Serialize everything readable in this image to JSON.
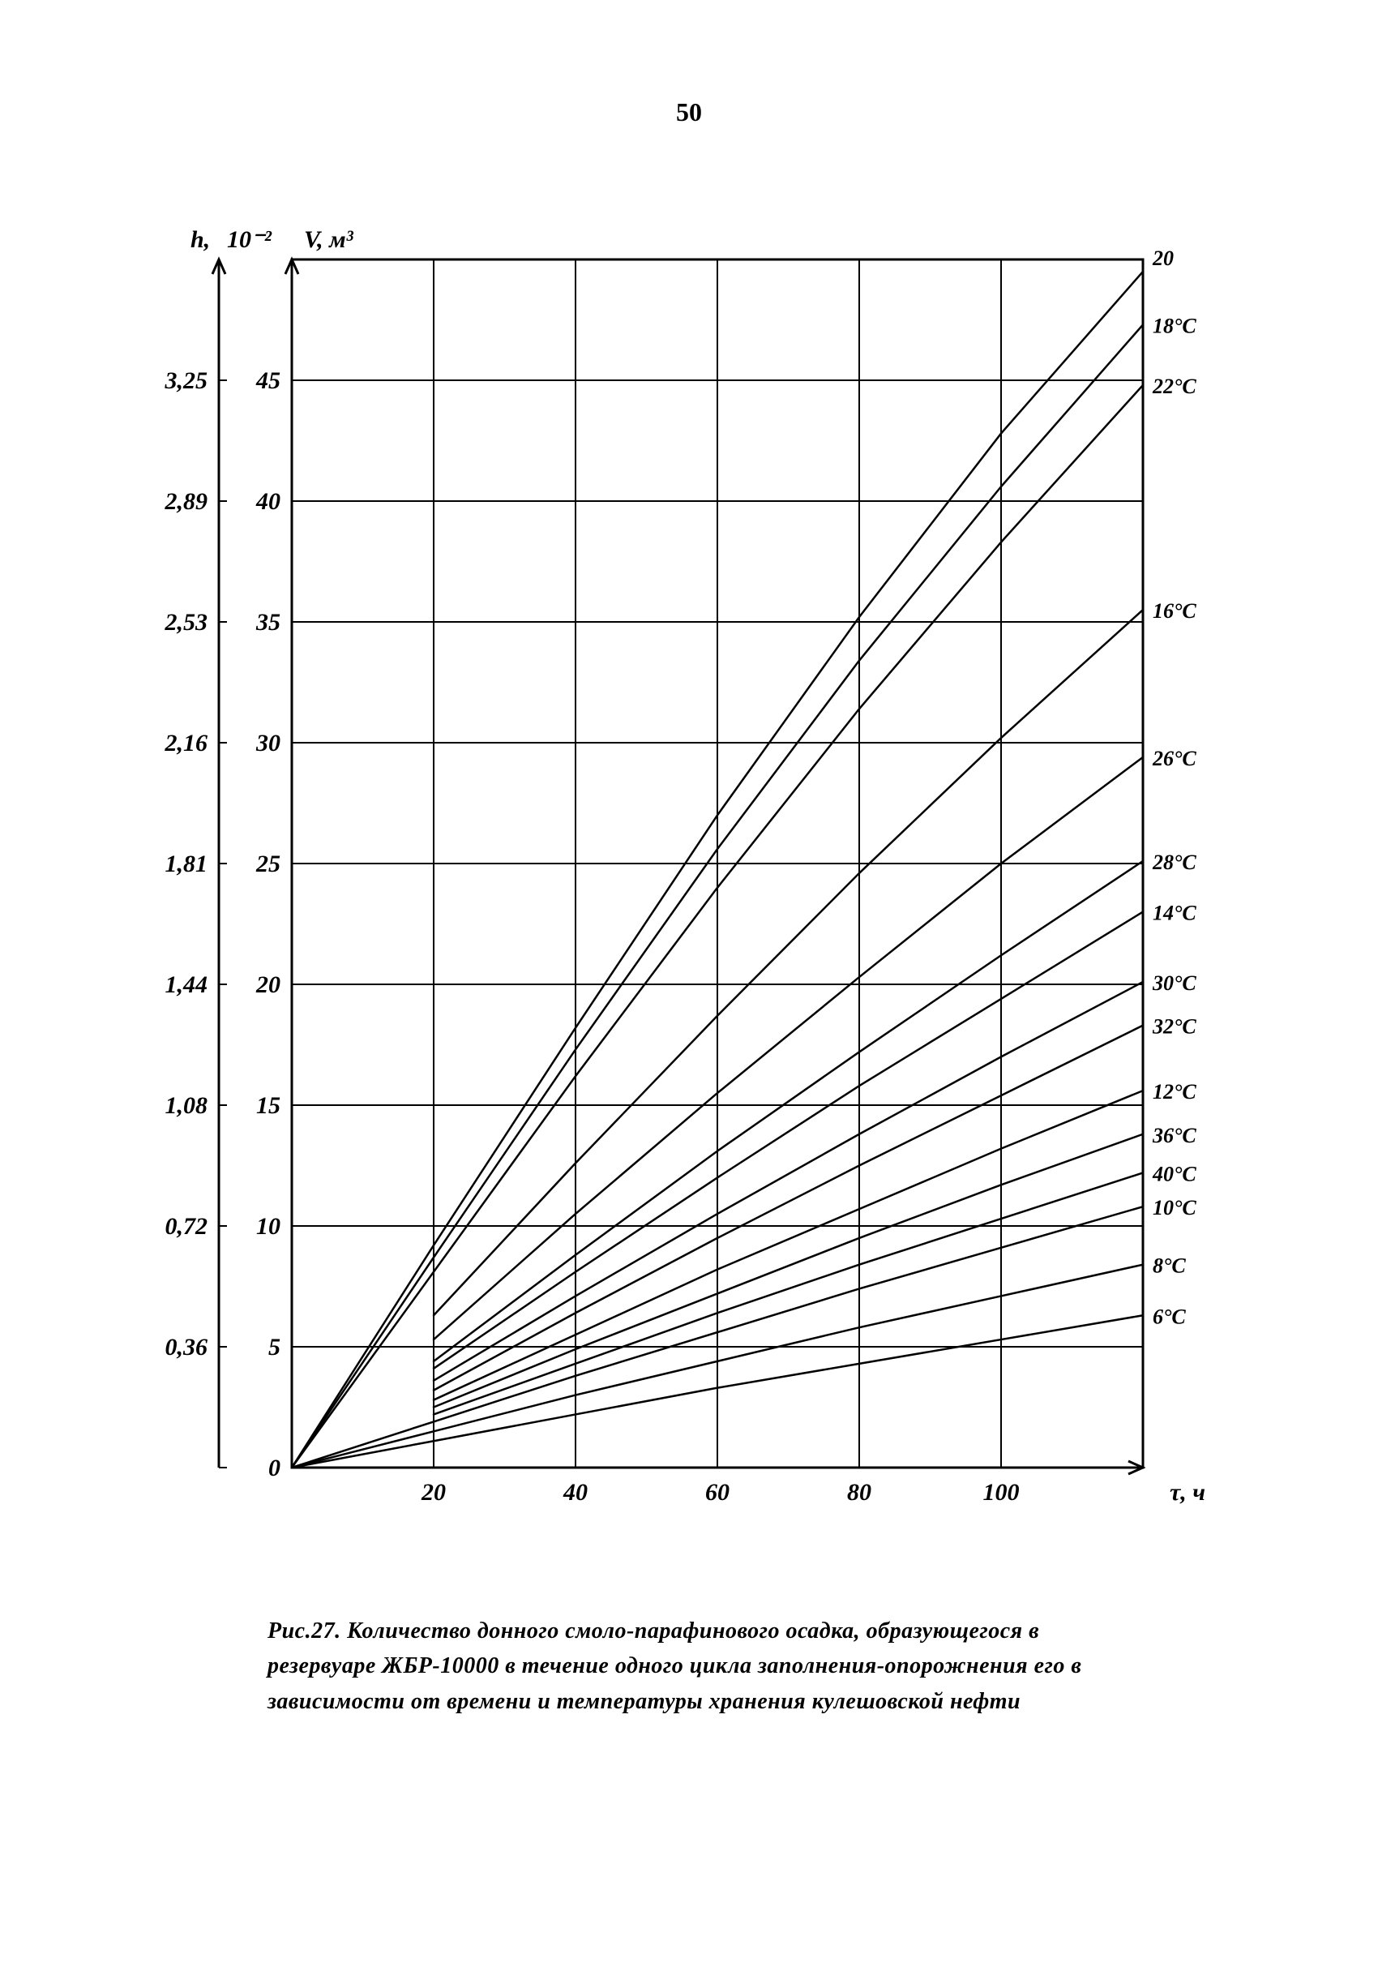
{
  "page_number": "50",
  "caption": "Рис.27. Количество донного смоло-парафинового осадка, образующегося в резервуаре ЖБР-10000 в течение одного цикла заполнения-опорожнения его в зависимости от времени и температуры хранения кулешовской нефти",
  "chart": {
    "type": "line",
    "background_color": "#ffffff",
    "stroke_color": "#000000",
    "axis_line_width": 3,
    "grid_line_width": 2,
    "curve_line_width": 2.5,
    "tick_font_size": 30,
    "tick_font_style": "italic",
    "tick_font_weight": "bold",
    "label_font_style": "italic",
    "label_font_weight": "bold",
    "x": {
      "min": 0,
      "max": 120,
      "ticks": [
        20,
        40,
        60,
        80,
        100
      ],
      "label": "τ, ч"
    },
    "y_inner": {
      "min": 0,
      "max": 50,
      "ticks": [
        0,
        5,
        10,
        15,
        20,
        25,
        30,
        35,
        40,
        45
      ],
      "label_top": "V, м³",
      "exp_label": "10⁻²"
    },
    "y_outer": {
      "ticks_map": [
        {
          "v": 0,
          "t": "0"
        },
        {
          "v": 5,
          "t": "0,36"
        },
        {
          "v": 10,
          "t": "0,72"
        },
        {
          "v": 15,
          "t": "1,08"
        },
        {
          "v": 20,
          "t": "1,44"
        },
        {
          "v": 25,
          "t": "1,81"
        },
        {
          "v": 30,
          "t": "2,16"
        },
        {
          "v": 35,
          "t": "2,53"
        },
        {
          "v": 40,
          "t": "2,89"
        },
        {
          "v": 45,
          "t": "3,25"
        }
      ],
      "label_top": "h, 10⁻² м"
    },
    "series": [
      {
        "label": "20",
        "label_end_offset_y": -18,
        "pts": [
          [
            0,
            0
          ],
          [
            20,
            9.2
          ],
          [
            40,
            18.2
          ],
          [
            60,
            27.0
          ],
          [
            80,
            35.2
          ],
          [
            100,
            42.8
          ],
          [
            120,
            49.5
          ]
        ]
      },
      {
        "label": "18°C",
        "label_end_offset_y": 0,
        "pts": [
          [
            0,
            0
          ],
          [
            20,
            8.7
          ],
          [
            40,
            17.3
          ],
          [
            60,
            25.6
          ],
          [
            80,
            33.4
          ],
          [
            100,
            40.6
          ],
          [
            120,
            47.3
          ]
        ]
      },
      {
        "label": "22°C",
        "label_end_offset_y": 0,
        "pts": [
          [
            0,
            0
          ],
          [
            20,
            8.1
          ],
          [
            40,
            16.2
          ],
          [
            60,
            24.0
          ],
          [
            80,
            31.4
          ],
          [
            100,
            38.3
          ],
          [
            120,
            44.8
          ]
        ]
      },
      {
        "label": "16°C",
        "label_end_offset_y": 0,
        "pts": [
          [
            20,
            6.3
          ],
          [
            40,
            12.6
          ],
          [
            60,
            18.7
          ],
          [
            80,
            24.6
          ],
          [
            100,
            30.2
          ],
          [
            120,
            35.5
          ]
        ]
      },
      {
        "label": "26°C",
        "label_end_offset_y": 0,
        "pts": [
          [
            20,
            5.3
          ],
          [
            40,
            10.5
          ],
          [
            60,
            15.5
          ],
          [
            80,
            20.3
          ],
          [
            100,
            25.0
          ],
          [
            120,
            29.4
          ]
        ]
      },
      {
        "label": "28°C",
        "label_end_offset_y": 0,
        "pts": [
          [
            20,
            4.4
          ],
          [
            40,
            8.8
          ],
          [
            60,
            13.1
          ],
          [
            80,
            17.2
          ],
          [
            100,
            21.2
          ],
          [
            120,
            25.1
          ]
        ]
      },
      {
        "label": "14°C",
        "label_end_offset_y": 0,
        "pts": [
          [
            20,
            4.1
          ],
          [
            40,
            8.1
          ],
          [
            60,
            12.0
          ],
          [
            80,
            15.8
          ],
          [
            100,
            19.4
          ],
          [
            120,
            23.0
          ]
        ]
      },
      {
        "label": "30°C",
        "label_end_offset_y": 0,
        "pts": [
          [
            20,
            3.6
          ],
          [
            40,
            7.1
          ],
          [
            60,
            10.5
          ],
          [
            80,
            13.8
          ],
          [
            100,
            17.0
          ],
          [
            120,
            20.1
          ]
        ]
      },
      {
        "label": "32°C",
        "label_end_offset_y": 0,
        "pts": [
          [
            20,
            3.2
          ],
          [
            40,
            6.4
          ],
          [
            60,
            9.5
          ],
          [
            80,
            12.5
          ],
          [
            100,
            15.4
          ],
          [
            120,
            18.3
          ]
        ]
      },
      {
        "label": "12°C",
        "label_end_offset_y": 0,
        "pts": [
          [
            20,
            2.8
          ],
          [
            40,
            5.5
          ],
          [
            60,
            8.2
          ],
          [
            80,
            10.7
          ],
          [
            100,
            13.2
          ],
          [
            120,
            15.6
          ]
        ]
      },
      {
        "label": "36°C",
        "label_end_offset_y": 0,
        "pts": [
          [
            20,
            2.5
          ],
          [
            40,
            4.9
          ],
          [
            60,
            7.2
          ],
          [
            80,
            9.5
          ],
          [
            100,
            11.7
          ],
          [
            120,
            13.8
          ]
        ]
      },
      {
        "label": "40°C",
        "label_end_offset_y": 0,
        "pts": [
          [
            20,
            2.2
          ],
          [
            40,
            4.3
          ],
          [
            60,
            6.4
          ],
          [
            80,
            8.4
          ],
          [
            100,
            10.3
          ],
          [
            120,
            12.2
          ]
        ]
      },
      {
        "label": "10°C",
        "label_end_offset_y": 0,
        "pts": [
          [
            0,
            0
          ],
          [
            20,
            1.9
          ],
          [
            40,
            3.8
          ],
          [
            60,
            5.6
          ],
          [
            80,
            7.4
          ],
          [
            100,
            9.1
          ],
          [
            120,
            10.8
          ]
        ]
      },
      {
        "label": "8°C",
        "label_end_offset_y": 0,
        "pts": [
          [
            0,
            0
          ],
          [
            20,
            1.5
          ],
          [
            40,
            3.0
          ],
          [
            60,
            4.4
          ],
          [
            80,
            5.8
          ],
          [
            100,
            7.1
          ],
          [
            120,
            8.4
          ]
        ]
      },
      {
        "label": "6°C",
        "label_end_offset_y": 0,
        "pts": [
          [
            0,
            0
          ],
          [
            20,
            1.1
          ],
          [
            40,
            2.2
          ],
          [
            60,
            3.3
          ],
          [
            80,
            4.3
          ],
          [
            100,
            5.3
          ],
          [
            120,
            6.3
          ]
        ]
      }
    ]
  }
}
